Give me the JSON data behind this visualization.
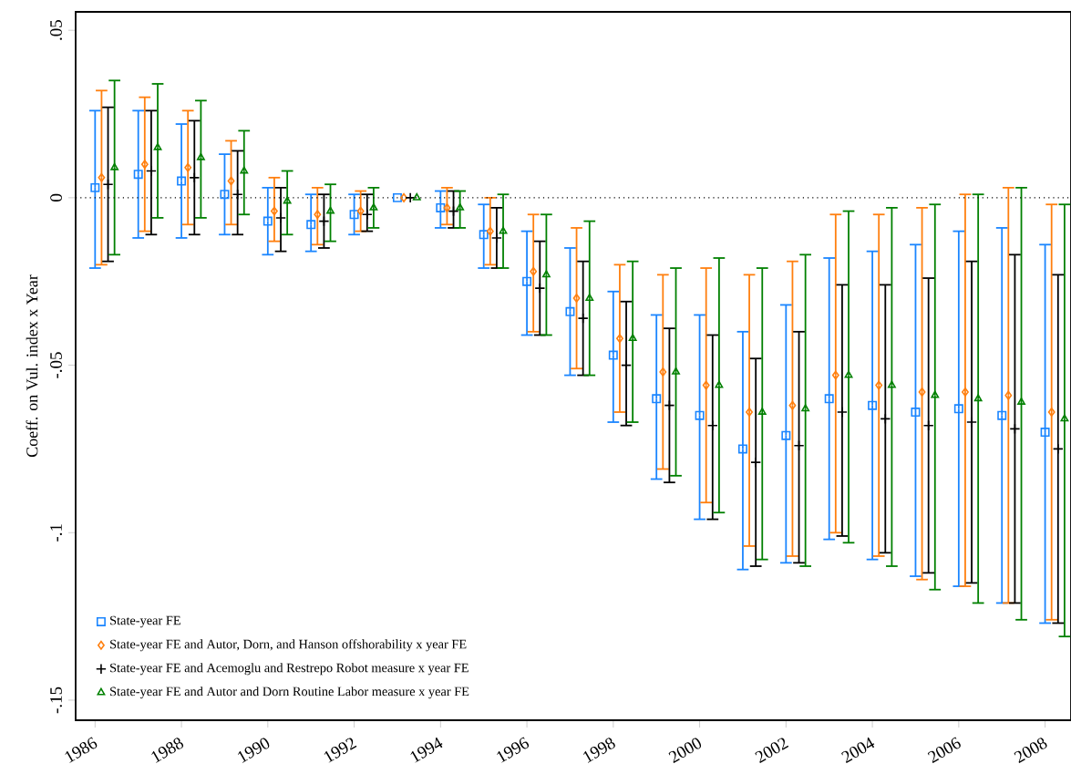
{
  "chart_data": {
    "type": "scatter",
    "ylabel": "Coeff. on Vul. index x Year",
    "xlim": [
      1985.55,
      2008.6
    ],
    "ylim": [
      -0.156,
      0.0555
    ],
    "xticks": [
      1986,
      1988,
      1990,
      1992,
      1994,
      1996,
      1998,
      2000,
      2002,
      2004,
      2006,
      2008
    ],
    "yticks": [
      {
        "value": 0.05,
        "label": ".05"
      },
      0,
      {
        "value": -0.05,
        "label": "-.05"
      },
      {
        "value": -0.1,
        "label": "-.1"
      },
      {
        "value": -0.15,
        "label": "-.15"
      }
    ],
    "grid": false,
    "legend": "bottom left",
    "ref_lines": [
      {
        "axis": "y",
        "value": 0,
        "color": "#000000",
        "line_style": "dotted"
      }
    ],
    "series": [
      {
        "name": "State-year FE",
        "color": "#1a85ff",
        "marker": "square",
        "x": [
          1986,
          1987,
          1988,
          1989,
          1990,
          1991,
          1992,
          1993,
          1994,
          1995,
          1996,
          1997,
          1998,
          1999,
          2000,
          2001,
          2002,
          2003,
          2004,
          2005,
          2006,
          2007,
          2008
        ],
        "values": [
          0.003,
          0.007,
          0.005,
          0.001,
          -0.007,
          -0.008,
          -0.005,
          0,
          -0.003,
          -0.011,
          -0.025,
          -0.034,
          -0.047,
          -0.06,
          -0.065,
          -0.075,
          -0.071,
          -0.06,
          -0.062,
          -0.064,
          -0.063,
          -0.065,
          -0.07
        ],
        "errors": [
          [
            -0.021,
            0.026
          ],
          [
            -0.012,
            0.026
          ],
          [
            -0.012,
            0.022
          ],
          [
            -0.011,
            0.013
          ],
          [
            -0.017,
            0.003
          ],
          [
            -0.016,
            0.001
          ],
          [
            -0.011,
            0.001
          ],
          null,
          [
            -0.009,
            0.002
          ],
          [
            -0.021,
            -0.002
          ],
          [
            -0.041,
            -0.01
          ],
          [
            -0.053,
            -0.015
          ],
          [
            -0.067,
            -0.028
          ],
          [
            -0.084,
            -0.035
          ],
          [
            -0.096,
            -0.035
          ],
          [
            -0.111,
            -0.04
          ],
          [
            -0.109,
            -0.032
          ],
          [
            -0.102,
            -0.018
          ],
          [
            -0.108,
            -0.016
          ],
          [
            -0.113,
            -0.014
          ],
          [
            -0.116,
            -0.01
          ],
          [
            -0.121,
            -0.009
          ],
          [
            -0.127,
            -0.014
          ]
        ]
      },
      {
        "name": "State-year FE and Autor, Dorn, and Hanson offshorability x year FE",
        "color": "#ff7f0e",
        "marker": "diamond",
        "x": [
          1986.15,
          1987.15,
          1988.15,
          1989.15,
          1990.15,
          1991.15,
          1992.15,
          1993.15,
          1994.15,
          1995.15,
          1996.15,
          1997.15,
          1998.15,
          1999.15,
          2000.15,
          2001.15,
          2002.15,
          2003.15,
          2004.15,
          2005.15,
          2006.15,
          2007.15,
          2008.15
        ],
        "values": [
          0.006,
          0.01,
          0.009,
          0.005,
          -0.004,
          -0.005,
          -0.004,
          0,
          -0.003,
          -0.01,
          -0.022,
          -0.03,
          -0.042,
          -0.052,
          -0.056,
          -0.064,
          -0.062,
          -0.053,
          -0.056,
          -0.058,
          -0.058,
          -0.059,
          -0.064
        ],
        "errors": [
          [
            -0.02,
            0.032
          ],
          [
            -0.01,
            0.03
          ],
          [
            -0.008,
            0.026
          ],
          [
            -0.008,
            0.017
          ],
          [
            -0.013,
            0.006
          ],
          [
            -0.014,
            0.003
          ],
          [
            -0.01,
            0.002
          ],
          null,
          [
            -0.008,
            0.003
          ],
          [
            -0.02,
            0.0
          ],
          [
            -0.04,
            -0.005
          ],
          [
            -0.051,
            -0.009
          ],
          [
            -0.064,
            -0.02
          ],
          [
            -0.081,
            -0.023
          ],
          [
            -0.091,
            -0.021
          ],
          [
            -0.104,
            -0.023
          ],
          [
            -0.107,
            -0.019
          ],
          [
            -0.1,
            -0.005
          ],
          [
            -0.107,
            -0.005
          ],
          [
            -0.114,
            -0.003
          ],
          [
            -0.116,
            0.001
          ],
          [
            -0.121,
            0.003
          ],
          [
            -0.126,
            -0.002
          ]
        ]
      },
      {
        "name": "State-year FE and Acemoglu and Restrepo Robot measure x year FE",
        "color": "#000000",
        "marker": "cross",
        "x": [
          1986.3,
          1987.3,
          1988.3,
          1989.3,
          1990.3,
          1991.3,
          1992.3,
          1993.3,
          1994.3,
          1995.3,
          1996.3,
          1997.3,
          1998.3,
          1999.3,
          2000.3,
          2001.3,
          2002.3,
          2003.3,
          2004.3,
          2005.3,
          2006.3,
          2007.3,
          2008.3
        ],
        "values": [
          0.004,
          0.008,
          0.006,
          0.001,
          -0.006,
          -0.007,
          -0.005,
          0,
          -0.004,
          -0.012,
          -0.027,
          -0.036,
          -0.05,
          -0.062,
          -0.068,
          -0.079,
          -0.074,
          -0.064,
          -0.066,
          -0.068,
          -0.067,
          -0.069,
          -0.075
        ],
        "errors": [
          [
            -0.019,
            0.027
          ],
          [
            -0.011,
            0.026
          ],
          [
            -0.011,
            0.023
          ],
          [
            -0.011,
            0.014
          ],
          [
            -0.016,
            0.003
          ],
          [
            -0.015,
            0.001
          ],
          [
            -0.01,
            0.001
          ],
          null,
          [
            -0.009,
            0.002
          ],
          [
            -0.021,
            -0.003
          ],
          [
            -0.041,
            -0.013
          ],
          [
            -0.053,
            -0.019
          ],
          [
            -0.068,
            -0.031
          ],
          [
            -0.085,
            -0.039
          ],
          [
            -0.096,
            -0.041
          ],
          [
            -0.11,
            -0.048
          ],
          [
            -0.109,
            -0.04
          ],
          [
            -0.101,
            -0.026
          ],
          [
            -0.106,
            -0.026
          ],
          [
            -0.112,
            -0.024
          ],
          [
            -0.115,
            -0.019
          ],
          [
            -0.121,
            -0.017
          ],
          [
            -0.127,
            -0.023
          ]
        ]
      },
      {
        "name": "State-year FE and Autor and Dorn Routine Labor measure x year FE",
        "color": "#008000",
        "marker": "triangle",
        "x": [
          1986.45,
          1987.45,
          1988.45,
          1989.45,
          1990.45,
          1991.45,
          1992.45,
          1993.45,
          1994.45,
          1995.45,
          1996.45,
          1997.45,
          1998.45,
          1999.45,
          2000.45,
          2001.45,
          2002.45,
          2003.45,
          2004.45,
          2005.45,
          2006.45,
          2007.45,
          2008.45
        ],
        "values": [
          0.009,
          0.015,
          0.012,
          0.008,
          -0.001,
          -0.004,
          -0.003,
          0,
          -0.003,
          -0.01,
          -0.023,
          -0.03,
          -0.042,
          -0.052,
          -0.056,
          -0.064,
          -0.063,
          -0.053,
          -0.056,
          -0.059,
          -0.06,
          -0.061,
          -0.066
        ],
        "errors": [
          [
            -0.017,
            0.035
          ],
          [
            -0.006,
            0.034
          ],
          [
            -0.006,
            0.029
          ],
          [
            -0.005,
            0.02
          ],
          [
            -0.011,
            0.008
          ],
          [
            -0.013,
            0.004
          ],
          [
            -0.009,
            0.003
          ],
          null,
          [
            -0.009,
            0.002
          ],
          [
            -0.021,
            0.001
          ],
          [
            -0.041,
            -0.005
          ],
          [
            -0.053,
            -0.007
          ],
          [
            -0.067,
            -0.019
          ],
          [
            -0.083,
            -0.021
          ],
          [
            -0.094,
            -0.018
          ],
          [
            -0.108,
            -0.021
          ],
          [
            -0.11,
            -0.017
          ],
          [
            -0.103,
            -0.004
          ],
          [
            -0.11,
            -0.003
          ],
          [
            -0.117,
            -0.002
          ],
          [
            -0.121,
            0.001
          ],
          [
            -0.126,
            0.003
          ],
          [
            -0.131,
            -0.002
          ]
        ]
      }
    ]
  }
}
